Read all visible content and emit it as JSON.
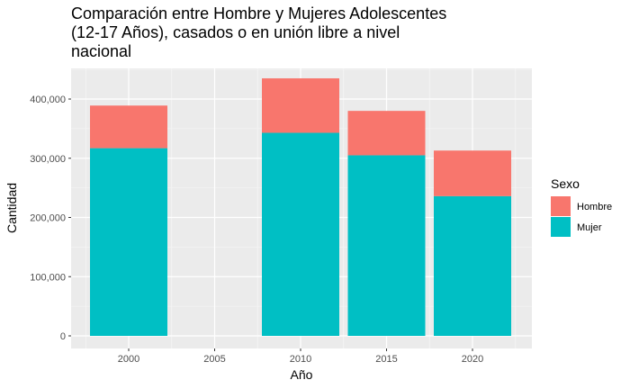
{
  "chart_data": {
    "type": "bar",
    "stacked": true,
    "title": "Comparación entre Hombre y Mujeres Adolescentes\n(12-17 Años), casados o en unión libre a nivel\nnacional",
    "xlabel": "Año",
    "ylabel": "Cantidad",
    "x": [
      2000,
      2010,
      2015,
      2020
    ],
    "x_ticks": [
      "2000",
      "2005",
      "2010",
      "2015",
      "2020"
    ],
    "y_ticks": [
      "0",
      "100,000",
      "200,000",
      "300,000",
      "400,000"
    ],
    "ylim": [
      0,
      435000
    ],
    "xlim": [
      1997.5,
      2022.5
    ],
    "grid": true,
    "legend": {
      "title": "Sexo",
      "position": "right"
    },
    "series": [
      {
        "name": "Mujer",
        "color": "#00BFC4",
        "values": [
          317000,
          343000,
          305000,
          236000
        ]
      },
      {
        "name": "Hombre",
        "color": "#F8766D",
        "values": [
          72000,
          92000,
          75000,
          77000
        ]
      }
    ]
  }
}
